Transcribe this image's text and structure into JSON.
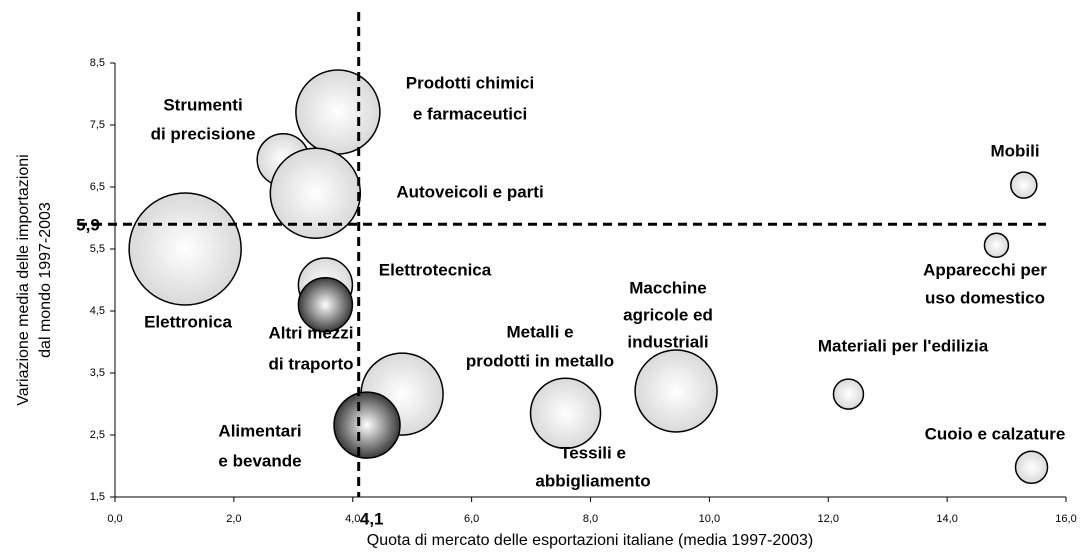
{
  "chart_data": {
    "type": "bubble",
    "x_label": "Quota di mercato delle esportazioni italiane (media 1997-2003)",
    "y_label": [
      "Variazione media delle importazioni",
      "dal mondo 1997-2003"
    ],
    "xlim": [
      0,
      16
    ],
    "ylim": [
      1.5,
      8.5
    ],
    "xticks": [
      {
        "value": 0,
        "label": "0,0"
      },
      {
        "value": 2,
        "label": "2,0"
      },
      {
        "value": 4,
        "label": "4,0"
      },
      {
        "value": 6,
        "label": "6,0"
      },
      {
        "value": 8,
        "label": "8,0"
      },
      {
        "value": 10,
        "label": "10,0"
      },
      {
        "value": 12,
        "label": "12,0"
      },
      {
        "value": 14,
        "label": "14,0"
      },
      {
        "value": 16,
        "label": "16,0"
      }
    ],
    "yticks": [
      {
        "value": 1.5,
        "label": "1,5"
      },
      {
        "value": 2.5,
        "label": "2,5"
      },
      {
        "value": 3.5,
        "label": "3,5"
      },
      {
        "value": 4.5,
        "label": "4,5"
      },
      {
        "value": 5.5,
        "label": "5,5"
      },
      {
        "value": 6.5,
        "label": "6,5"
      },
      {
        "value": 7.5,
        "label": "7,5"
      },
      {
        "value": 8.5,
        "label": "8,5"
      }
    ],
    "reference_x": {
      "value": 4.1,
      "label": "4,1"
    },
    "reference_y": {
      "value": 5.9,
      "label": "5,9"
    },
    "points": [
      {
        "label": [
          "Elettronica"
        ],
        "x": 1.18,
        "y": 5.5,
        "size": 5.6,
        "color": "#d9d9d9"
      },
      {
        "label": [
          "Prodotti chimici",
          "e farmaceutici"
        ],
        "x": 3.75,
        "y": 7.71,
        "size": 4.2,
        "color": "#d9d9d9"
      },
      {
        "label": [
          "Strumenti",
          "di precisione"
        ],
        "x": 2.83,
        "y": 6.94,
        "size": 2.6,
        "color": "#d9d9d9"
      },
      {
        "label": [
          "Autoveicoli e parti"
        ],
        "x": 3.37,
        "y": 6.4,
        "size": 4.5,
        "color": "#d9d9d9"
      },
      {
        "label": [
          "Elettrotecnica"
        ],
        "x": 3.54,
        "y": 4.92,
        "size": 2.7,
        "color": "#d9d9d9"
      },
      {
        "label": [
          "Altri mezzi",
          "di traporto"
        ],
        "x": 3.54,
        "y": 4.6,
        "size": 2.7,
        "color": "#3a3a3a"
      },
      {
        "label": [
          "Metalli e",
          "prodotti in metallo"
        ],
        "x": 4.83,
        "y": 3.16,
        "size": 4.1,
        "color": "#d9d9d9"
      },
      {
        "label": [
          "Alimentari",
          "e bevande"
        ],
        "x": 4.24,
        "y": 2.66,
        "size": 3.3,
        "color": "#3a3a3a"
      },
      {
        "label": [
          "Tessili e",
          "abbigliamento"
        ],
        "x": 7.58,
        "y": 2.85,
        "size": 3.5,
        "color": "#d9d9d9"
      },
      {
        "label": [
          "Macchine",
          "agricole ed",
          "industriali"
        ],
        "x": 9.44,
        "y": 3.21,
        "size": 4.1,
        "color": "#d9d9d9"
      },
      {
        "label": [
          "Materiali per l'edilizia"
        ],
        "x": 12.34,
        "y": 3.16,
        "size": 1.5,
        "color": "#d9d9d9"
      },
      {
        "label": [
          "Apparecchi per",
          "uso domestico"
        ],
        "x": 14.83,
        "y": 5.56,
        "size": 1.2,
        "color": "#d9d9d9"
      },
      {
        "label": [
          "Mobili"
        ],
        "x": 15.29,
        "y": 6.53,
        "size": 1.3,
        "color": "#d9d9d9"
      },
      {
        "label": [
          "Cuoio e calzature"
        ],
        "x": 15.42,
        "y": 1.98,
        "size": 1.6,
        "color": "#d9d9d9"
      }
    ]
  }
}
